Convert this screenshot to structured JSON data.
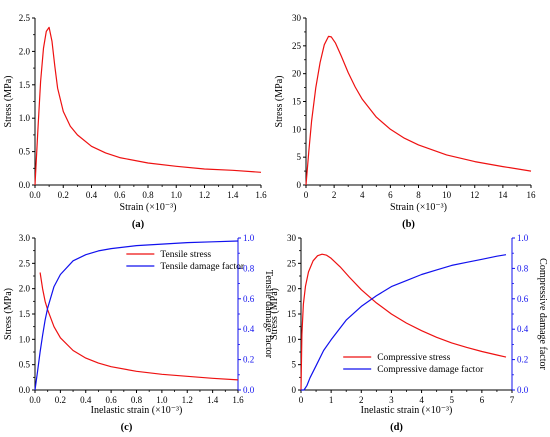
{
  "chart_data": [
    {
      "panel": "(a)",
      "type": "line",
      "xlabel": "Strain (×10⁻³)",
      "ylabel": "Stress (MPa)",
      "xlim": [
        0,
        1.6
      ],
      "ylim": [
        0,
        2.5
      ],
      "xticks": [
        "0.0",
        "0.2",
        "0.4",
        "0.6",
        "0.8",
        "1.0",
        "1.2",
        "1.4",
        "1.6"
      ],
      "yticks": [
        "0.0",
        "0.5",
        "1.0",
        "1.5",
        "2.0",
        "2.5"
      ],
      "series": [
        {
          "color": "#ee1111",
          "x": [
            0,
            0.02,
            0.04,
            0.06,
            0.08,
            0.1,
            0.12,
            0.14,
            0.16,
            0.2,
            0.25,
            0.3,
            0.4,
            0.5,
            0.6,
            0.8,
            1.0,
            1.2,
            1.4,
            1.6
          ],
          "y": [
            0,
            0.8,
            1.55,
            2.05,
            2.3,
            2.36,
            2.15,
            1.78,
            1.45,
            1.1,
            0.88,
            0.75,
            0.58,
            0.48,
            0.41,
            0.33,
            0.28,
            0.24,
            0.22,
            0.19
          ]
        }
      ]
    },
    {
      "panel": "(b)",
      "type": "line",
      "xlabel": "Strain (×10⁻³)",
      "ylabel": "Stress (MPa)",
      "xlim": [
        0,
        16
      ],
      "ylim": [
        0,
        30
      ],
      "xticks": [
        "0",
        "2",
        "4",
        "6",
        "8",
        "10",
        "12",
        "14",
        "16"
      ],
      "yticks": [
        "0",
        "5",
        "10",
        "15",
        "20",
        "25",
        "30"
      ],
      "series": [
        {
          "color": "#ee1111",
          "x": [
            0,
            0.2,
            0.4,
            0.7,
            1.0,
            1.3,
            1.6,
            1.8,
            2.1,
            2.5,
            3.0,
            3.5,
            4.0,
            5.0,
            6.0,
            7.0,
            8.0,
            10.0,
            12.0,
            14.0,
            16.0
          ],
          "y": [
            0,
            6,
            11.5,
            17.5,
            22,
            25.2,
            26.7,
            26.6,
            25.5,
            23.2,
            20.2,
            17.6,
            15.4,
            12.2,
            10.0,
            8.4,
            7.2,
            5.4,
            4.2,
            3.3,
            2.5
          ]
        }
      ]
    },
    {
      "panel": "(c)",
      "type": "line",
      "xlabel": "Inelastic strain (×10⁻³)",
      "ylabel": "Stress (MPa)",
      "ylabel_right": "Tensile damage factor",
      "xlim": [
        0,
        1.6
      ],
      "ylim": [
        0,
        3.0
      ],
      "ylim_right": [
        0,
        1.0
      ],
      "xticks": [
        "0.0",
        "0.2",
        "0.4",
        "0.6",
        "0.8",
        "1.0",
        "1.2",
        "1.4",
        "1.6"
      ],
      "yticks": [
        "0.0",
        "0.5",
        "1.0",
        "1.5",
        "2.0",
        "2.5",
        "3.0"
      ],
      "yticks_right": [
        "0.0",
        "0.2",
        "0.4",
        "0.6",
        "0.8",
        "1.0"
      ],
      "legend": "top-right",
      "series": [
        {
          "name": "Tensile stress",
          "color": "#ee1111",
          "axis": "left",
          "x": [
            0.04,
            0.06,
            0.08,
            0.1,
            0.15,
            0.2,
            0.3,
            0.4,
            0.5,
            0.6,
            0.8,
            1.0,
            1.2,
            1.4,
            1.6
          ],
          "y": [
            2.32,
            2.0,
            1.75,
            1.58,
            1.25,
            1.03,
            0.78,
            0.63,
            0.53,
            0.46,
            0.37,
            0.31,
            0.27,
            0.23,
            0.2
          ]
        },
        {
          "name": "Tensile damage factor",
          "color": "#1111ee",
          "axis": "right",
          "x": [
            0.0,
            0.02,
            0.04,
            0.06,
            0.08,
            0.1,
            0.15,
            0.2,
            0.3,
            0.4,
            0.5,
            0.6,
            0.8,
            1.0,
            1.2,
            1.4,
            1.6
          ],
          "y": [
            0.0,
            0.12,
            0.25,
            0.36,
            0.46,
            0.54,
            0.68,
            0.76,
            0.85,
            0.89,
            0.915,
            0.93,
            0.95,
            0.96,
            0.97,
            0.975,
            0.98
          ]
        }
      ]
    },
    {
      "panel": "(d)",
      "type": "line",
      "xlabel": "Inelastic strain (×10⁻³)",
      "ylabel": "Stress (MPa)",
      "ylabel_right": "Compressive damage factor",
      "xlim": [
        0,
        7
      ],
      "ylim": [
        0,
        30
      ],
      "ylim_right": [
        0,
        1.0
      ],
      "xticks": [
        "0",
        "1",
        "2",
        "3",
        "4",
        "5",
        "6",
        "7"
      ],
      "yticks": [
        "0",
        "5",
        "10",
        "15",
        "20",
        "25",
        "30"
      ],
      "yticks_right": [
        "0.0",
        "0.2",
        "0.4",
        "0.6",
        "0.8",
        "1.0"
      ],
      "legend": "bottom-center",
      "series": [
        {
          "name": "Compressive stress",
          "color": "#ee1111",
          "axis": "left",
          "x": [
            0.0,
            0.03,
            0.08,
            0.15,
            0.25,
            0.4,
            0.55,
            0.7,
            0.85,
            1.0,
            1.3,
            1.6,
            2.0,
            2.5,
            3.0,
            3.5,
            4.0,
            4.5,
            5.0,
            5.5,
            6.0,
            6.5,
            6.8
          ],
          "y": [
            0,
            11,
            17,
            20.5,
            23.3,
            25.5,
            26.5,
            26.8,
            26.6,
            26.0,
            24.3,
            22.3,
            19.8,
            17.2,
            15.0,
            13.2,
            11.7,
            10.4,
            9.3,
            8.4,
            7.6,
            6.9,
            6.5
          ]
        },
        {
          "name": "Compressive damage factor",
          "color": "#1111ee",
          "axis": "right",
          "x": [
            0.0,
            0.1,
            0.2,
            0.3,
            0.5,
            0.75,
            1.0,
            1.5,
            2.0,
            2.5,
            3.0,
            3.5,
            4.0,
            4.5,
            5.0,
            5.5,
            6.0,
            6.5,
            6.8
          ],
          "y": [
            0.0,
            0.0,
            0.03,
            0.08,
            0.16,
            0.26,
            0.33,
            0.46,
            0.55,
            0.62,
            0.68,
            0.72,
            0.76,
            0.79,
            0.82,
            0.84,
            0.86,
            0.88,
            0.89
          ]
        }
      ]
    }
  ]
}
